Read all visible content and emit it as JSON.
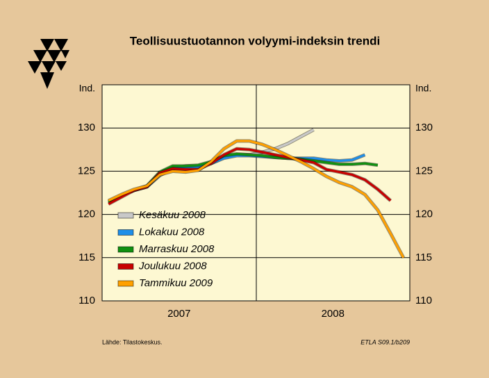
{
  "chart_data": {
    "type": "line",
    "title": "Teollisuustuotannon volyymi-indeksin trendi",
    "y_unit": "Ind.",
    "categories": [
      null,
      null,
      null,
      null,
      null,
      null,
      null,
      null,
      null,
      null,
      null,
      null,
      null,
      null,
      null,
      null,
      null,
      null,
      null,
      null,
      null,
      null,
      null,
      null
    ],
    "groups": [
      {
        "label": "2007",
        "count": 12
      },
      {
        "label": "2008",
        "count": 12
      }
    ],
    "ylim": [
      110,
      135
    ],
    "yticks": [
      110,
      115,
      120,
      125,
      130
    ],
    "grid": true,
    "series": [
      {
        "name": "Kesäkuu 2008",
        "color": "#c8c8c8",
        "values": [
          121.5,
          122.2,
          122.8,
          123.2,
          124.5,
          125.3,
          125.6,
          125.6,
          125.9,
          126.6,
          126.9,
          126.9,
          127.2,
          127.6,
          128.2,
          129.0,
          129.8,
          null,
          null,
          null,
          null,
          null,
          null,
          null
        ]
      },
      {
        "name": "Lokakuu 2008",
        "color": "#1e8ee8",
        "values": [
          121.5,
          122.2,
          122.8,
          123.2,
          124.6,
          125.3,
          125.5,
          125.5,
          125.9,
          126.5,
          126.8,
          126.8,
          126.7,
          126.6,
          126.5,
          126.5,
          126.5,
          126.3,
          126.2,
          126.3,
          126.9,
          null,
          null,
          null
        ]
      },
      {
        "name": "Marraskuu 2008",
        "color": "#109010",
        "values": [
          121.4,
          122.2,
          122.8,
          123.3,
          124.9,
          125.6,
          125.6,
          125.7,
          126.1,
          126.8,
          127.0,
          126.9,
          126.8,
          126.6,
          126.5,
          126.4,
          126.2,
          126.0,
          125.8,
          125.8,
          125.9,
          125.7,
          null,
          null
        ]
      },
      {
        "name": "Joulukuu 2008",
        "color": "#c80000",
        "values": [
          121.2,
          122.0,
          122.8,
          123.2,
          124.8,
          125.3,
          125.2,
          125.2,
          125.9,
          126.9,
          127.6,
          127.5,
          127.2,
          126.9,
          126.6,
          126.3,
          126.0,
          125.2,
          124.9,
          124.6,
          124.0,
          122.9,
          121.6,
          null
        ]
      },
      {
        "name": "Tammikuu 2009",
        "color": "#ffa000",
        "values": [
          121.6,
          122.3,
          122.9,
          123.3,
          124.6,
          125.0,
          124.9,
          125.1,
          126.1,
          127.6,
          128.5,
          128.5,
          128.1,
          127.5,
          126.8,
          126.1,
          125.3,
          124.4,
          123.7,
          123.2,
          122.3,
          120.5,
          117.8,
          115.0
        ]
      }
    ],
    "source": "Lähde:   Tilastokeskus.",
    "code": "ETLA S09.1/b209"
  }
}
